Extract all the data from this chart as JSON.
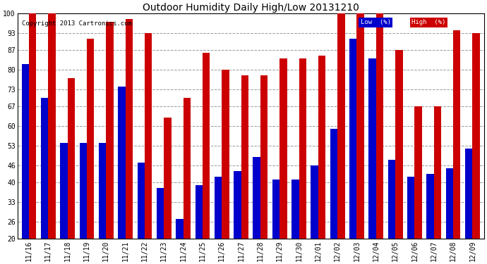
{
  "title": "Outdoor Humidity Daily High/Low 20131210",
  "copyright": "Copyright 2013 Cartronics.com",
  "categories": [
    "11/16",
    "11/17",
    "11/18",
    "11/19",
    "11/20",
    "11/21",
    "11/22",
    "11/23",
    "11/24",
    "11/25",
    "11/26",
    "11/27",
    "11/28",
    "11/29",
    "11/30",
    "12/01",
    "12/02",
    "12/03",
    "12/04",
    "12/05",
    "12/06",
    "12/07",
    "12/08",
    "12/09"
  ],
  "low_values": [
    82,
    70,
    54,
    54,
    54,
    74,
    47,
    38,
    27,
    39,
    42,
    44,
    49,
    41,
    41,
    46,
    59,
    91,
    84,
    48,
    42,
    43,
    45,
    52
  ],
  "high_values": [
    100,
    100,
    77,
    91,
    97,
    98,
    93,
    63,
    70,
    86,
    80,
    78,
    78,
    84,
    84,
    85,
    100,
    100,
    100,
    87,
    67,
    67,
    94,
    93
  ],
  "low_color": "#0000cc",
  "high_color": "#cc0000",
  "bg_color": "#ffffff",
  "grid_color": "#999999",
  "yticks": [
    20,
    26,
    33,
    40,
    46,
    53,
    60,
    67,
    73,
    80,
    87,
    93,
    100
  ],
  "ymin": 20,
  "ymax": 100,
  "bar_bottom": 20,
  "legend_low_label": "Low  (%)",
  "legend_high_label": "High  (%)",
  "bar_width": 0.38
}
